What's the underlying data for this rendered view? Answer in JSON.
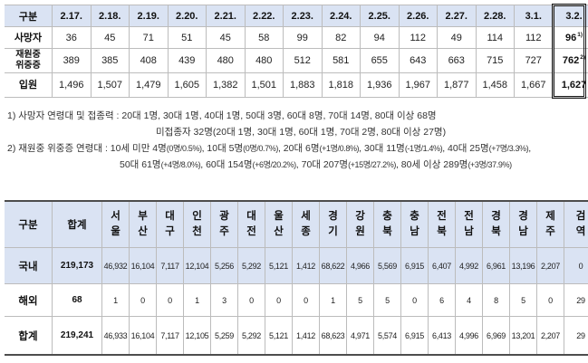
{
  "theme": {
    "header_fill": "#dae3f3",
    "table_rule": "#4d4d4d"
  },
  "summary_table": {
    "header_label": "구분",
    "dates": [
      "2.17.",
      "2.18.",
      "2.19.",
      "2.20.",
      "2.21.",
      "2.22.",
      "2.23.",
      "2.24.",
      "2.25.",
      "2.26.",
      "2.27.",
      "2.28.",
      "3.1."
    ],
    "latest_date": "3.2.",
    "rows": [
      {
        "label": "사망자",
        "values": [
          "36",
          "45",
          "71",
          "51",
          "45",
          "58",
          "99",
          "82",
          "94",
          "112",
          "49",
          "114",
          "112"
        ],
        "latest": "96",
        "latest_note": "1)"
      },
      {
        "label": "재원중 위중증",
        "values": [
          "389",
          "385",
          "408",
          "439",
          "480",
          "480",
          "512",
          "581",
          "655",
          "643",
          "663",
          "715",
          "727"
        ],
        "latest": "762",
        "latest_note": "2)"
      },
      {
        "label": "입원",
        "values": [
          "1,496",
          "1,507",
          "1,479",
          "1,605",
          "1,382",
          "1,501",
          "1,883",
          "1,818",
          "1,936",
          "1,967",
          "1,877",
          "1,458",
          "1,667"
        ],
        "latest": "1,627"
      }
    ]
  },
  "notes": {
    "death_breakdown": [
      "1) 사망자 연령대 및 접종력 : 20대 1명, 30대 1명, 40대 1명, 50대 3명, 60대 8명, 70대 14명, 80대 이상 68명",
      "미접종자 32명(20대 1명, 30대 1명, 60대 1명, 70대 2명, 80대 이상 27명)"
    ],
    "critical_breakdown": [
      "2) 재원중 위중증 연령대 : 10세 미만 4명(0명/0.5%), 10대 5명(0명/0.7%), 20대 6명(+1명/0.8%), 30대 11명(-1명/1.4%), 40대 25명(+7명/3.3%),",
      "50대 61명(+4명/8.0%), 60대 154명(+6명/20.2%), 70대 207명(+15명/27.2%), 80세 이상 289명(+3명/37.9%)"
    ]
  },
  "region_table": {
    "header_label": "구분",
    "total_label": "합계",
    "regions": [
      "서울",
      "부산",
      "대구",
      "인천",
      "광주",
      "대전",
      "울산",
      "세종",
      "경기",
      "강원",
      "충북",
      "충남",
      "전북",
      "전남",
      "경북",
      "경남",
      "제주",
      "검역"
    ],
    "rows": [
      {
        "label": "국내",
        "highlighted": true,
        "total": "219,173",
        "values": [
          "46,932",
          "16,104",
          "7,117",
          "12,104",
          "5,256",
          "5,292",
          "5,121",
          "1,412",
          "68,622",
          "4,966",
          "5,569",
          "6,915",
          "6,407",
          "4,992",
          "6,961",
          "13,196",
          "2,207",
          "0"
        ]
      },
      {
        "label": "해외",
        "total": "68",
        "values": [
          "1",
          "0",
          "0",
          "1",
          "3",
          "0",
          "0",
          "0",
          "1",
          "5",
          "5",
          "0",
          "6",
          "4",
          "8",
          "5",
          "0",
          "29"
        ]
      },
      {
        "label": "합계",
        "total": "219,241",
        "values": [
          "46,933",
          "16,104",
          "7,117",
          "12,105",
          "5,259",
          "5,292",
          "5,121",
          "1,412",
          "68,623",
          "4,971",
          "5,574",
          "6,915",
          "6,413",
          "4,996",
          "6,969",
          "13,201",
          "2,207",
          "29"
        ]
      }
    ]
  }
}
